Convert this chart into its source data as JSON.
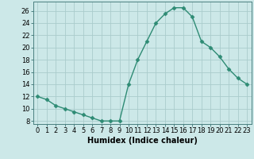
{
  "x": [
    0,
    1,
    2,
    3,
    4,
    5,
    6,
    7,
    8,
    9,
    10,
    11,
    12,
    13,
    14,
    15,
    16,
    17,
    18,
    19,
    20,
    21,
    22,
    23
  ],
  "y": [
    12,
    11.5,
    10.5,
    10,
    9.5,
    9,
    8.5,
    8,
    8,
    8,
    14,
    18,
    21,
    24,
    25.5,
    26.5,
    26.5,
    25,
    21,
    20,
    18.5,
    16.5,
    15,
    14
  ],
  "line_color": "#2e8b74",
  "marker": "D",
  "marker_size": 2.5,
  "bg_color": "#cce8e8",
  "grid_color": "#aacccc",
  "xlabel": "Humidex (Indice chaleur)",
  "xlabel_fontsize": 7,
  "tick_fontsize": 6,
  "xlim": [
    -0.5,
    23.5
  ],
  "ylim": [
    7.5,
    27.5
  ],
  "yticks": [
    8,
    10,
    12,
    14,
    16,
    18,
    20,
    22,
    24,
    26
  ],
  "xticks": [
    0,
    1,
    2,
    3,
    4,
    5,
    6,
    7,
    8,
    9,
    10,
    11,
    12,
    13,
    14,
    15,
    16,
    17,
    18,
    19,
    20,
    21,
    22,
    23
  ]
}
